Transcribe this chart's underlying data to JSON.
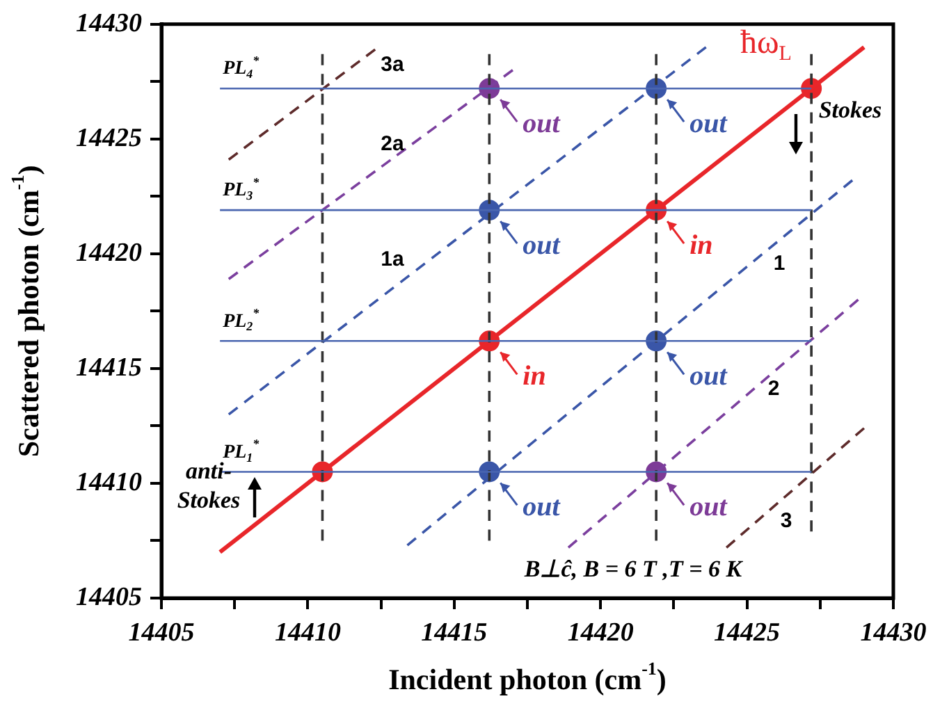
{
  "chart_data": {
    "type": "line",
    "xlabel": "Incident photon (cm$^{-1}$)",
    "ylabel": "Scattered photon (cm$^{-1}$)",
    "xlim": [
      14405,
      14430
    ],
    "ylim": [
      14405,
      14430
    ],
    "xticks": [
      14405,
      {
        "value": 14407.5,
        "label": null
      },
      14410,
      {
        "value": 14412.5,
        "label": null
      },
      14415,
      {
        "value": 14417.5,
        "label": null
      },
      14420,
      {
        "value": 14422.5,
        "label": null
      },
      14425,
      {
        "value": 14427.5,
        "label": null
      },
      14430
    ],
    "yticks": [
      14405,
      {
        "value": 14407.5,
        "label": null
      },
      14410,
      {
        "value": 14412.5,
        "label": null
      },
      14415,
      {
        "value": 14417.5,
        "label": null
      },
      14420,
      {
        "value": 14422.5,
        "label": null
      },
      14425,
      {
        "value": 14427.5,
        "label": null
      },
      14430
    ],
    "grid": false,
    "legend": false,
    "series": [
      {
        "name": "PL$_{4}$$^{*}$",
        "color": "#4a66b0",
        "x": [
          14407,
          14427.2
        ],
        "values": [
          14427.2,
          14427.2
        ],
        "line_style": "solid",
        "marker": "none"
      },
      {
        "name": "PL$_{3}$$^{*}$",
        "color": "#4a66b0",
        "x": [
          14407,
          14427.2
        ],
        "values": [
          14421.9,
          14421.9
        ],
        "line_style": "solid",
        "marker": "none"
      },
      {
        "name": "PL$_{2}$$^{*}$",
        "color": "#4a66b0",
        "x": [
          14407,
          14427.2
        ],
        "values": [
          14416.2,
          14416.2
        ],
        "line_style": "solid",
        "marker": "none"
      },
      {
        "name": "PL$_{1}$$^{*}$",
        "color": "#4a66b0",
        "x": [
          14407,
          14427.2
        ],
        "values": [
          14410.5,
          14410.5
        ],
        "line_style": "solid",
        "marker": "none"
      },
      {
        "color": "#333333",
        "x": [
          14410.5,
          14410.5
        ],
        "values": [
          14407.5,
          14428.7
        ],
        "line_style": "dashed",
        "marker": "none"
      },
      {
        "color": "#333333",
        "x": [
          14416.2,
          14416.2
        ],
        "values": [
          14407.5,
          14428.7
        ],
        "line_style": "dashed",
        "marker": "none"
      },
      {
        "color": "#333333",
        "x": [
          14421.9,
          14421.9
        ],
        "values": [
          14407.5,
          14428.7
        ],
        "line_style": "dashed",
        "marker": "none"
      },
      {
        "color": "#333333",
        "x": [
          14427.2,
          14427.2
        ],
        "values": [
          14407.9,
          14428.7
        ],
        "line_style": "dashed",
        "marker": "none"
      },
      {
        "color": "#5e2b2b",
        "x": [
          14407.3,
          14412.3
        ],
        "values": [
          14424.1,
          14428.9
        ],
        "line_style": "dashed",
        "marker": "none"
      },
      {
        "color": "#7b3f9e",
        "x": [
          14407.3,
          14417
        ],
        "values": [
          14418.9,
          14428
        ],
        "line_style": "dashed",
        "marker": "none"
      },
      {
        "color": "#3a56a8",
        "x": [
          14407.3,
          14423.6
        ],
        "values": [
          14413,
          14429
        ],
        "line_style": "dashed",
        "marker": "none"
      },
      {
        "color": "#3a56a8",
        "x": [
          14413.4,
          14428.6
        ],
        "values": [
          14407.3,
          14423.2
        ],
        "line_style": "dashed",
        "marker": "none"
      },
      {
        "color": "#7b3f9e",
        "x": [
          14418.9,
          14428.8
        ],
        "values": [
          14407.2,
          14418
        ],
        "line_style": "dashed",
        "marker": "none"
      },
      {
        "color": "#5e2b2b",
        "x": [
          14424.3,
          14429
        ],
        "values": [
          14407.2,
          14412.4
        ],
        "line_style": "dashed",
        "marker": "none"
      },
      {
        "name": "ħω$_{L}$",
        "color": "#e8262a",
        "x": [
          14407,
          14429
        ],
        "values": [
          14407,
          14429
        ],
        "line_style": "solid",
        "marker": "none"
      },
      {
        "type": "scatter",
        "color": "#e8262a",
        "x": [
          14410.5,
          14416.2,
          14421.9,
          14427.2
        ],
        "values": [
          14410.5,
          14416.2,
          14421.9,
          14427.2
        ],
        "value_labels": [
          null,
          "in",
          "in",
          null
        ],
        "marker": "circle"
      },
      {
        "type": "scatter",
        "color": "#3a56a8",
        "x": [
          14416.2,
          14421.9,
          14421.9,
          14416.2
        ],
        "values": [
          14421.9,
          14427.2,
          14416.2,
          14410.5
        ],
        "value_labels": [
          "out",
          "out",
          "out",
          "out"
        ],
        "marker": "circle"
      },
      {
        "type": "scatter",
        "color": "#7d3b97",
        "x": [
          14416.2,
          14421.9
        ],
        "values": [
          14427.2,
          14410.5
        ],
        "value_labels": [
          "out",
          "out"
        ],
        "marker": "circle"
      }
    ],
    "annotations": [
      "3a",
      "2a",
      "1a",
      "1",
      "2",
      "3",
      "Stokes",
      "anti-\nStokes",
      "B⊥ĉ, B = 6 T ,T = 6 K"
    ]
  }
}
